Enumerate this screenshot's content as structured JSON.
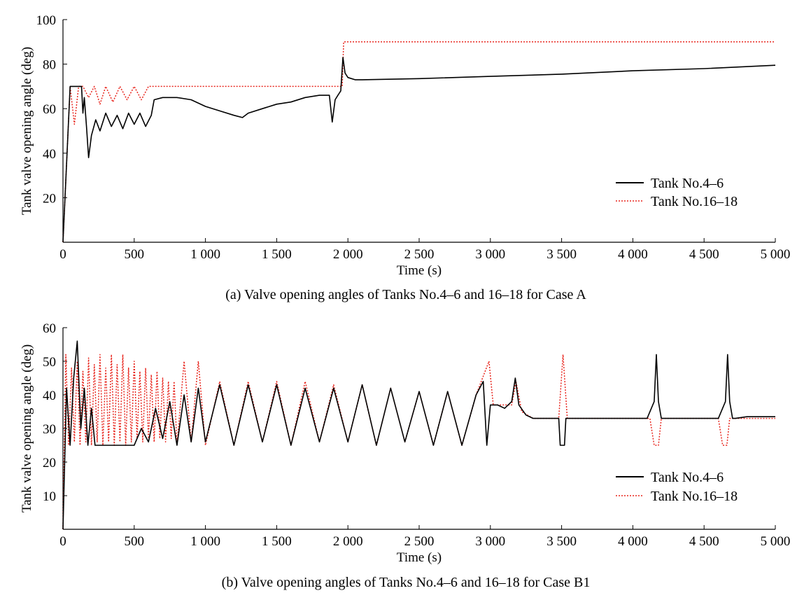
{
  "chart_data": [
    {
      "type": "line",
      "caption": "(a) Valve opening angles of Tanks No.4–6 and 16–18 for Case A",
      "xlabel": "Time (s)",
      "ylabel": "Tank valve opening angle (deg)",
      "xlim": [
        0,
        5000
      ],
      "ylim": [
        0,
        100
      ],
      "xticks": [
        0,
        500,
        1000,
        1500,
        2000,
        2500,
        3000,
        3500,
        4000,
        4500,
        5000
      ],
      "xtick_labels": [
        "0",
        "500",
        "1 000",
        "1 500",
        "2 000",
        "2 500",
        "3 000",
        "3 500",
        "4 000",
        "4 500",
        "5 000"
      ],
      "yticks": [
        20,
        40,
        60,
        80,
        100
      ],
      "ytick_labels": [
        "20",
        "40",
        "60",
        "80",
        "100"
      ],
      "grid": false,
      "legend_position": "right",
      "series": [
        {
          "name": "Tank No.4–6",
          "color": "#000000",
          "style": "solid",
          "x": [
            0,
            50,
            70,
            130,
            140,
            150,
            165,
            180,
            200,
            230,
            260,
            300,
            340,
            380,
            420,
            460,
            500,
            540,
            580,
            620,
            640,
            700,
            800,
            900,
            1000,
            1100,
            1200,
            1260,
            1300,
            1400,
            1500,
            1600,
            1700,
            1800,
            1850,
            1870,
            1890,
            1910,
            1930,
            1950,
            1965,
            1980,
            2000,
            2050,
            2100,
            2500,
            3000,
            3500,
            4000,
            4500,
            5000
          ],
          "y": [
            0,
            70,
            70,
            70,
            58,
            65,
            52,
            38,
            48,
            55,
            50,
            58,
            52,
            57,
            51,
            58,
            53,
            58,
            52,
            57,
            64,
            65,
            65,
            64,
            61,
            59,
            57,
            56,
            58,
            60,
            62,
            63,
            65,
            66,
            66,
            66,
            54,
            64,
            66,
            68,
            83,
            76,
            74,
            73,
            73,
            73.5,
            74.5,
            75.5,
            77,
            78,
            79.5
          ]
        },
        {
          "name": "Tank No.16–18",
          "color": "#e8261e",
          "style": "dotted",
          "x": [
            0,
            50,
            80,
            110,
            140,
            180,
            220,
            260,
            300,
            350,
            400,
            450,
            500,
            550,
            600,
            630,
            700,
            1000,
            1500,
            1900,
            1960,
            1970,
            2000,
            3000,
            4000,
            5000
          ],
          "y": [
            0,
            70,
            53,
            70,
            70,
            65,
            70,
            62,
            70,
            63,
            70,
            64,
            70,
            64,
            70,
            70,
            70,
            70,
            70,
            70,
            70,
            90,
            90,
            90,
            90,
            90
          ]
        }
      ]
    },
    {
      "type": "line",
      "caption": "(b) Valve opening angles of Tanks No.4–6 and 16–18 for Case B1",
      "xlabel": "Time (s)",
      "ylabel": "Tank valve opening angle (deg)",
      "xlim": [
        0,
        5000
      ],
      "ylim": [
        0,
        60
      ],
      "xticks": [
        0,
        500,
        1000,
        1500,
        2000,
        2500,
        3000,
        3500,
        4000,
        4500,
        5000
      ],
      "xtick_labels": [
        "0",
        "500",
        "1 000",
        "1 500",
        "2 000",
        "2 500",
        "3 000",
        "3 500",
        "4 000",
        "4 500",
        "5 000"
      ],
      "yticks": [
        10,
        20,
        30,
        40,
        50,
        60
      ],
      "ytick_labels": [
        "10",
        "20",
        "30",
        "40",
        "50",
        "60"
      ],
      "grid": false,
      "legend_position": "right",
      "series": [
        {
          "name": "Tank No.4–6",
          "color": "#000000",
          "style": "solid",
          "x": [
            0,
            25,
            50,
            75,
            100,
            125,
            150,
            175,
            200,
            225,
            250,
            275,
            300,
            400,
            500,
            550,
            600,
            650,
            700,
            750,
            800,
            850,
            900,
            950,
            1000,
            1100,
            1200,
            1300,
            1400,
            1500,
            1600,
            1700,
            1800,
            1900,
            2000,
            2100,
            2200,
            2300,
            2400,
            2500,
            2600,
            2700,
            2800,
            2900,
            2950,
            2975,
            3000,
            3025,
            3050,
            3100,
            3150,
            3175,
            3200,
            3250,
            3300,
            3400,
            3480,
            3490,
            3520,
            3530,
            3560,
            3600,
            3700,
            4000,
            4100,
            4150,
            4165,
            4180,
            4200,
            4220,
            4300,
            4500,
            4600,
            4650,
            4665,
            4680,
            4700,
            4720,
            4800,
            4900,
            5000
          ],
          "y": [
            0,
            42,
            25,
            45,
            56,
            30,
            42,
            25,
            36,
            25,
            25,
            25,
            25,
            25,
            25,
            30,
            26,
            36,
            27,
            38,
            25,
            40,
            26,
            42,
            26,
            43,
            25,
            43,
            26,
            43,
            25,
            42,
            26,
            42,
            26,
            43,
            25,
            42,
            26,
            41,
            25,
            41,
            25,
            40,
            44,
            25,
            37,
            37,
            37,
            36,
            38,
            45,
            37,
            34,
            33,
            33,
            33,
            25,
            25,
            33,
            33,
            33,
            33,
            33,
            33,
            38,
            52,
            38,
            33,
            33,
            33,
            33,
            33,
            38,
            52,
            38,
            33,
            33,
            33.5,
            33.5,
            33.5
          ]
        },
        {
          "name": "Tank No.16–18",
          "color": "#e8261e",
          "style": "dotted",
          "x": [
            0,
            20,
            40,
            60,
            80,
            100,
            120,
            140,
            160,
            180,
            200,
            220,
            240,
            260,
            280,
            300,
            320,
            340,
            360,
            380,
            400,
            420,
            440,
            460,
            480,
            500,
            520,
            540,
            560,
            580,
            600,
            620,
            640,
            660,
            680,
            700,
            720,
            740,
            760,
            780,
            800,
            850,
            900,
            950,
            1000,
            1100,
            1200,
            1300,
            1400,
            1500,
            1600,
            1700,
            1800,
            1900,
            2000,
            2100,
            2200,
            2300,
            2400,
            2500,
            2600,
            2700,
            2800,
            2900,
            2990,
            3020,
            3050,
            3100,
            3150,
            3180,
            3220,
            3300,
            3400,
            3480,
            3510,
            3540,
            3600,
            4000,
            4120,
            4150,
            4180,
            4200,
            4300,
            4600,
            4630,
            4660,
            4680,
            4700,
            4800,
            5000
          ],
          "y": [
            0,
            52,
            25,
            48,
            26,
            50,
            25,
            47,
            26,
            51,
            25,
            49,
            26,
            52,
            25,
            48,
            26,
            52,
            25,
            49,
            26,
            52,
            25,
            48,
            26,
            50,
            27,
            47,
            26,
            48,
            27,
            46,
            26,
            47,
            27,
            45,
            26,
            44,
            27,
            44,
            25,
            50,
            26,
            50,
            25,
            44,
            25,
            44,
            26,
            44,
            25,
            44,
            26,
            43,
            26,
            43,
            25,
            42,
            26,
            41,
            25,
            41,
            25,
            40,
            50,
            37,
            37,
            37,
            37,
            44,
            35,
            33,
            33,
            33,
            52,
            33,
            33,
            33,
            33,
            25,
            25,
            33,
            33,
            33,
            25,
            25,
            33,
            33,
            33,
            33
          ]
        }
      ]
    }
  ]
}
